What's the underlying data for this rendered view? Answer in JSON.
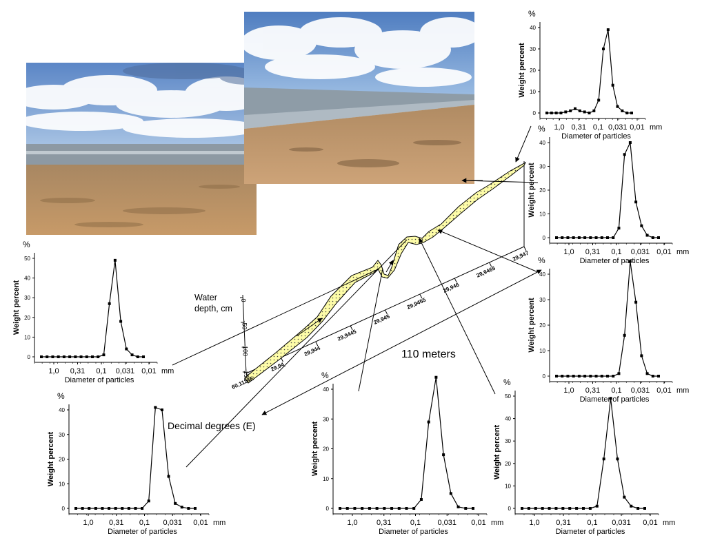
{
  "colors": {
    "profile_fill": "#fdfca8",
    "sky": "#6f9ad3",
    "cloud": "#ffffff",
    "sand": "#b58a5a",
    "water": "#8b9ba6"
  },
  "labels": {
    "water_depth": "Water depth, cm",
    "distance": "110 meters",
    "longitude": "Decimal degrees (E)"
  },
  "profile_axes": {
    "depth_ticks": [
      "0",
      "-50",
      "-100",
      "-150"
    ],
    "longitude_ticks": [
      "60,112#E",
      "29,94̥",
      "29,944",
      "29,9445",
      "29,945",
      "29,9455",
      "29,946",
      "29,9465",
      "29,947"
    ]
  },
  "charts": [
    {
      "id": "top-right",
      "y_unit": "%",
      "ylabel": "Weight percent",
      "xlabel": "Diameter of particles",
      "x_unit": "mm",
      "x_ticks": [
        "1,0",
        "0,31",
        "0,1",
        "0,031",
        "0,01"
      ],
      "y_ticks": [
        "0",
        "10",
        "20",
        "30",
        "40"
      ],
      "ylim": [
        0,
        40
      ],
      "values": [
        0,
        0,
        0,
        0,
        0.5,
        1,
        2,
        1,
        0.5,
        0,
        1,
        6,
        30,
        39,
        13,
        3,
        1,
        0,
        0
      ]
    },
    {
      "id": "mid-right-upper",
      "y_unit": "%",
      "ylabel": "Weight percent",
      "xlabel": "Diameter of particles",
      "x_unit": "mm",
      "x_ticks": [
        "1,0",
        "0,31",
        "0,1",
        "0,031",
        "0,01"
      ],
      "y_ticks": [
        "0",
        "10",
        "20",
        "30",
        "40"
      ],
      "ylim": [
        0,
        40
      ],
      "values": [
        0,
        0,
        0,
        0,
        0,
        0,
        0,
        0,
        0,
        0,
        0,
        4,
        35,
        40,
        15,
        5,
        1,
        0,
        0
      ]
    },
    {
      "id": "left",
      "y_unit": "%",
      "ylabel": "Weight percent",
      "xlabel": "Diameter of particles",
      "x_unit": "mm",
      "x_ticks": [
        "1,0",
        "0,31",
        "0,1",
        "0,031",
        "0,01"
      ],
      "y_ticks": [
        "0",
        "10",
        "20",
        "30",
        "40",
        "50"
      ],
      "ylim": [
        0,
        50
      ],
      "values": [
        0,
        0,
        0,
        0,
        0,
        0,
        0,
        0,
        0,
        0,
        0,
        1,
        27,
        49,
        18,
        4,
        1,
        0,
        0
      ]
    },
    {
      "id": "mid-right-lower",
      "y_unit": "%",
      "ylabel": "Weight percent",
      "xlabel": "Diameter of particles",
      "x_unit": "mm",
      "x_ticks": [
        "1,0",
        "0,31",
        "0,1",
        "0,031",
        "0,01"
      ],
      "y_ticks": [
        "0",
        "10",
        "20",
        "30",
        "40"
      ],
      "ylim": [
        0,
        40
      ],
      "values": [
        0,
        0,
        0,
        0,
        0,
        0,
        0,
        0,
        0,
        0,
        0,
        1,
        16,
        45,
        29,
        8,
        1,
        0,
        0
      ]
    },
    {
      "id": "bottom-left",
      "y_unit": "%",
      "ylabel": "Weight percent",
      "xlabel": "Diameter of particles",
      "x_unit": "mm",
      "x_ticks": [
        "1,0",
        "0,31",
        "0,1",
        "0,031",
        "0,01"
      ],
      "y_ticks": [
        "0",
        "10",
        "20",
        "30",
        "40"
      ],
      "ylim": [
        0,
        40
      ],
      "values": [
        0,
        0,
        0,
        0,
        0,
        0,
        0,
        0,
        0,
        0,
        0,
        3,
        41,
        40,
        13,
        2,
        0.5,
        0,
        0
      ]
    },
    {
      "id": "bottom-center",
      "y_unit": "%",
      "ylabel": "Weight percent",
      "xlabel": "Diameter of particles",
      "x_unit": "mm",
      "x_ticks": [
        "1,0",
        "0,31",
        "0,1",
        "0,031",
        "0,01"
      ],
      "y_ticks": [
        "0",
        "10",
        "20",
        "30",
        "40"
      ],
      "ylim": [
        0,
        40
      ],
      "values": [
        0,
        0,
        0,
        0,
        0,
        0,
        0,
        0,
        0,
        0,
        0,
        3,
        29,
        44,
        18,
        5,
        0.5,
        0,
        0
      ]
    },
    {
      "id": "bottom-right",
      "y_unit": "%",
      "ylabel": "Weight percent",
      "xlabel": "Diameter of particles",
      "x_unit": "mm",
      "x_ticks": [
        "1,0",
        "0,31",
        "0,1",
        "0,031",
        "0,01"
      ],
      "y_ticks": [
        "0",
        "10",
        "20",
        "30",
        "40",
        "50"
      ],
      "ylim": [
        0,
        50
      ],
      "values": [
        0,
        0,
        0,
        0,
        0,
        0,
        0,
        0,
        0,
        0,
        0,
        1,
        22,
        49,
        22,
        5,
        1,
        0,
        0
      ]
    }
  ]
}
